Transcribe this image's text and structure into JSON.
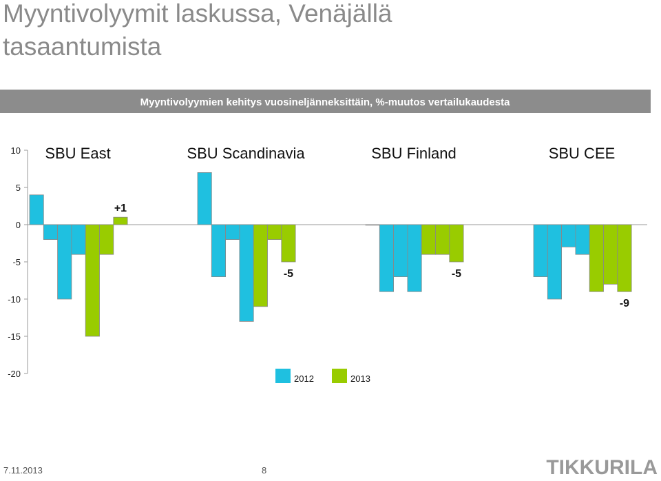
{
  "title_lines": [
    "Myyntivolyymit laskussa, Venäjällä",
    "tasaantumista"
  ],
  "footer": {
    "date": "7.11.2013",
    "page": "8",
    "logo": "TIKKURILA"
  },
  "chart_data": {
    "type": "bar",
    "subtitle": "Myyntivolyymien kehitys vuosineljänneksittäin, %-muutos vertailukaudesta",
    "categories": [
      "SBU East",
      "SBU Scandinavia",
      "SBU Finland",
      "SBU CEE"
    ],
    "series": [
      {
        "name": "2012",
        "color": "#1fc0e0",
        "values": [
          [
            4,
            -2,
            -10,
            -4
          ],
          [
            7,
            -7,
            -2,
            -13
          ],
          [
            0,
            -9,
            -7,
            -9
          ],
          [
            -7,
            -10,
            -3,
            -4
          ]
        ]
      },
      {
        "name": "2013",
        "color": "#99cc00",
        "values": [
          [
            -15,
            -4,
            1
          ],
          [
            -11,
            -2,
            -5
          ],
          [
            -4,
            -4,
            -5
          ],
          [
            -9,
            -8,
            -9
          ]
        ],
        "value_labels": [
          [
            null,
            null,
            "+1"
          ],
          [
            null,
            null,
            "-5"
          ],
          [
            null,
            null,
            "-5"
          ],
          [
            null,
            null,
            "-9"
          ]
        ]
      }
    ],
    "ylim": [
      -20,
      10
    ],
    "yticks": [
      -20,
      -15,
      -10,
      -5,
      0,
      5,
      10
    ]
  }
}
